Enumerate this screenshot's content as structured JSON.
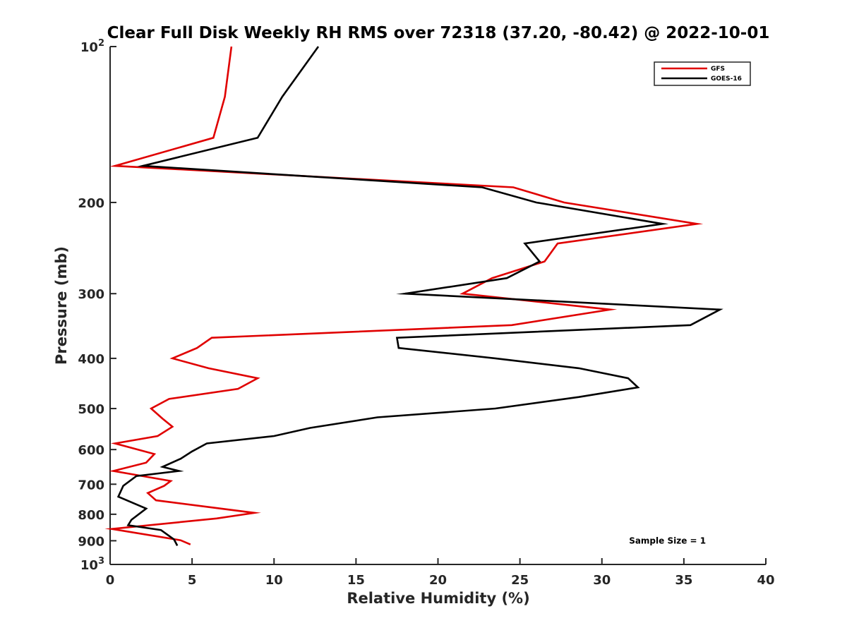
{
  "chart_data": {
    "type": "line",
    "title": "Clear Full Disk Weekly RH RMS over 72318 (37.20, -80.42) @ 2022-10-01",
    "xlabel": "Relative Humidity (%)",
    "ylabel": "Pressure (mb)",
    "xlim": [
      0,
      40
    ],
    "ylim": [
      100,
      1000
    ],
    "yscale": "log",
    "y_reversed": true,
    "x_ticks": [
      0,
      5,
      10,
      15,
      20,
      25,
      30,
      35,
      40
    ],
    "y_ticks": [
      {
        "value": 100,
        "label": "10",
        "sup": "2"
      },
      {
        "value": 200,
        "label": "200"
      },
      {
        "value": 300,
        "label": "300"
      },
      {
        "value": 400,
        "label": "400"
      },
      {
        "value": 500,
        "label": "500"
      },
      {
        "value": 600,
        "label": "600"
      },
      {
        "value": 700,
        "label": "700"
      },
      {
        "value": 800,
        "label": "800"
      },
      {
        "value": 900,
        "label": "900"
      },
      {
        "value": 1000,
        "label": "10",
        "sup": "3"
      }
    ],
    "grid": false,
    "legend_position": "top-right",
    "series": [
      {
        "name": "GFS",
        "color": "#e00000",
        "points": [
          [
            7.4,
            100
          ],
          [
            7.0,
            125
          ],
          [
            6.3,
            150
          ],
          [
            0.3,
            170
          ],
          [
            24.6,
            187
          ],
          [
            27.7,
            200
          ],
          [
            35.8,
            220
          ],
          [
            27.3,
            240
          ],
          [
            26.5,
            260
          ],
          [
            23.3,
            280
          ],
          [
            21.5,
            300
          ],
          [
            30.5,
            322
          ],
          [
            24.5,
            345
          ],
          [
            6.2,
            365
          ],
          [
            5.3,
            382
          ],
          [
            3.8,
            400
          ],
          [
            6.0,
            418
          ],
          [
            9.0,
            437
          ],
          [
            7.8,
            458
          ],
          [
            3.6,
            479
          ],
          [
            2.5,
            500
          ],
          [
            3.2,
            523
          ],
          [
            3.8,
            542
          ],
          [
            2.9,
            565
          ],
          [
            0.3,
            584
          ],
          [
            2.7,
            612
          ],
          [
            2.2,
            636
          ],
          [
            0.2,
            660
          ],
          [
            3.7,
            690
          ],
          [
            3.3,
            705
          ],
          [
            2.3,
            728
          ],
          [
            2.8,
            752
          ],
          [
            8.8,
            795
          ],
          [
            6.5,
            815
          ],
          [
            0.1,
            854
          ],
          [
            4.3,
            898
          ],
          [
            4.9,
            915
          ]
        ]
      },
      {
        "name": "GOES-16",
        "color": "#000000",
        "points": [
          [
            12.7,
            100
          ],
          [
            10.5,
            125
          ],
          [
            9.0,
            150
          ],
          [
            2.0,
            170
          ],
          [
            22.7,
            187
          ],
          [
            26.0,
            200
          ],
          [
            33.7,
            220
          ],
          [
            25.3,
            240
          ],
          [
            26.2,
            260
          ],
          [
            24.2,
            280
          ],
          [
            18.0,
            300
          ],
          [
            37.2,
            322
          ],
          [
            35.4,
            345
          ],
          [
            17.5,
            365
          ],
          [
            17.6,
            382
          ],
          [
            23.5,
            400
          ],
          [
            28.6,
            418
          ],
          [
            31.6,
            437
          ],
          [
            32.2,
            455
          ],
          [
            28.6,
            475
          ],
          [
            23.5,
            500
          ],
          [
            16.3,
            520
          ],
          [
            12.2,
            545
          ],
          [
            10.0,
            565
          ],
          [
            5.9,
            584
          ],
          [
            5.0,
            605
          ],
          [
            4.3,
            625
          ],
          [
            3.2,
            648
          ],
          [
            4.2,
            660
          ],
          [
            1.6,
            675
          ],
          [
            0.8,
            705
          ],
          [
            0.5,
            740
          ],
          [
            2.2,
            780
          ],
          [
            1.3,
            820
          ],
          [
            1.1,
            840
          ],
          [
            3.1,
            858
          ],
          [
            3.9,
            895
          ],
          [
            4.1,
            920
          ]
        ]
      }
    ],
    "annotations": [
      {
        "text": "Sample Size = 1",
        "x": 34.0,
        "y": 900
      }
    ]
  }
}
